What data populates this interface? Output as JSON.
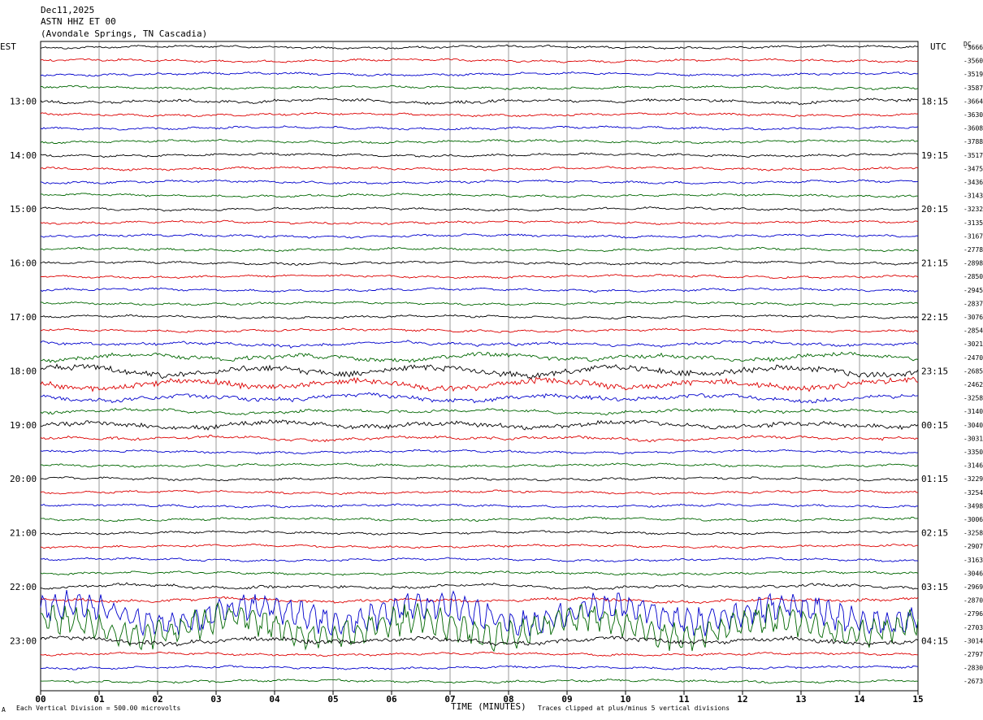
{
  "header": {
    "line1": "Dec11,2025",
    "line2": "ASTN HHZ ET 00",
    "line3": "(Avondale Springs, TN Cascadia)"
  },
  "axis_left_label": "EST",
  "axis_right_label": "UTC",
  "dc_label": "DC",
  "footer": {
    "corner_mark": "A",
    "scale": "Each Vertical Division =  500.00 microvolts",
    "xlabel": "TIME (MINUTES)",
    "clip": "Traces clipped at plus/minus 5 vertical divisions"
  },
  "chart_data": {
    "type": "line",
    "subtype": "helicorder",
    "x_ticks": [
      "00",
      "01",
      "02",
      "03",
      "04",
      "05",
      "06",
      "07",
      "08",
      "09",
      "10",
      "11",
      "12",
      "13",
      "14",
      "15"
    ],
    "xlim": [
      0,
      15
    ],
    "grid": true,
    "trace_colors": [
      "#000000",
      "#dd0000",
      "#0000cc",
      "#006600"
    ],
    "left_hour_labels": [
      "13:00",
      "14:00",
      "15:00",
      "16:00",
      "17:00",
      "18:00",
      "19:00",
      "20:00",
      "21:00",
      "22:00",
      "23:00"
    ],
    "right_hour_labels": [
      "18:15",
      "19:15",
      "20:15",
      "21:15",
      "22:15",
      "23:15",
      "00:15",
      "01:15",
      "02:15",
      "03:15",
      "04:15"
    ],
    "dc_offsets": [
      "-3666",
      "-3560",
      "-3519",
      "-3587",
      "-3664",
      "-3630",
      "-3608",
      "-3788",
      "-3517",
      "-3475",
      "-3436",
      "-3143",
      "-3232",
      "-3135",
      "-3167",
      "-2778",
      "-2898",
      "-2850",
      "-2945",
      "-2837",
      "-3076",
      "-2854",
      "-3021",
      "-2470",
      "-2685",
      "-2462",
      "-3258",
      "-3140",
      "-3040",
      "-3031",
      "-3350",
      "-3146",
      "-3229",
      "-3254",
      "-3498",
      "-3006",
      "-3258",
      "-2907",
      "-3163",
      "-3046",
      "-2969",
      "-2870",
      "-2796",
      "-2703",
      "-3014",
      "-2797",
      "-2830",
      "-2673"
    ],
    "trace_activity": [
      1,
      1,
      1,
      1,
      2,
      1,
      1,
      1,
      1,
      1,
      1,
      1,
      1,
      1,
      1,
      1,
      1,
      1,
      1,
      1,
      1.5,
      1.5,
      2,
      3,
      4,
      4,
      3,
      2,
      3,
      2,
      1,
      1,
      1,
      1,
      1,
      1,
      1,
      1,
      1,
      1.5,
      2,
      2,
      7,
      7,
      3,
      1.5,
      1,
      1
    ]
  }
}
